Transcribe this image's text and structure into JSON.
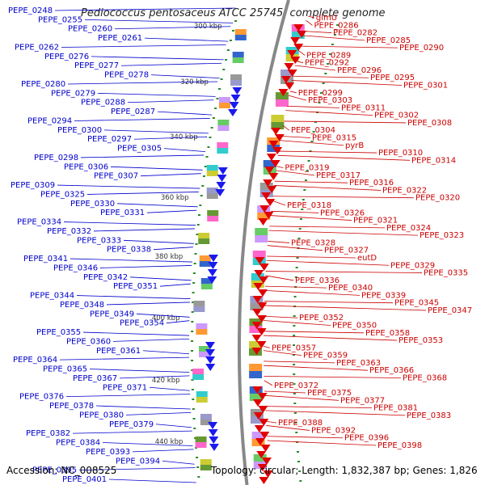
{
  "title": "Pediococcus pentosaceus ATCC 25745, complete genome",
  "footer": {
    "accession": "Accession: NC_008525",
    "topology": "Topology: circular; Length: 1,832,387 bp; Genes: 1,826"
  },
  "colors": {
    "left_labels": "#0000cc",
    "right_labels": "#cc0000",
    "backbone": "#888888",
    "ticks": "#2a8a2a"
  },
  "scale_ticks": [
    "300 kbp",
    "320 kbp",
    "340 kbp",
    "360 kbp",
    "380 kbp",
    "400 kbp",
    "420 kbp",
    "440 kbp"
  ],
  "left_labels": [
    "PEPE_0248",
    "PEPE_0255",
    "PEPE_0260",
    "PEPE_0261",
    "PEPE_0262",
    "PEPE_0276",
    "PEPE_0277",
    "PEPE_0278",
    "PEPE_0280",
    "PEPE_0279",
    "PEPE_0288",
    "PEPE_0287",
    "PEPE_0294",
    "PEPE_0300",
    "PEPE_0297",
    "PEPE_0305",
    "PEPE_0298",
    "PEPE_0306",
    "PEPE_0307",
    "PEPE_0309",
    "PEPE_0325",
    "PEPE_0330",
    "PEPE_0331",
    "PEPE_0334",
    "PEPE_0332",
    "PEPE_0333",
    "PEPE_0338",
    "PEPE_0341",
    "PEPE_0346",
    "PEPE_0342",
    "PEPE_0351",
    "PEPE_0344",
    "PEPE_0348",
    "PEPE_0349",
    "PEPE_0354",
    "PEPE_0355",
    "PEPE_0360",
    "PEPE_0361",
    "PEPE_0364",
    "PEPE_0365",
    "PEPE_0367",
    "PEPE_0371",
    "PEPE_0376",
    "PEPE_0378",
    "PEPE_0380",
    "PEPE_0379",
    "PEPE_0382",
    "PEPE_0384",
    "PEPE_0393",
    "PEPE_0394",
    "PEPE_0395",
    "PEPE_0401"
  ],
  "right_labels": [
    "glmU",
    "PEPE_0286",
    "PEPE_0282",
    "PEPE_0285",
    "PEPE_0290",
    "PEPE_0289",
    "PEPE_0292",
    "PEPE_0296",
    "PEPE_0295",
    "PEPE_0301",
    "PEPE_0299",
    "PEPE_0303",
    "PEPE_0311",
    "PEPE_0302",
    "PEPE_0308",
    "PEPE_0304",
    "PEPE_0315",
    "pyrB",
    "PEPE_0310",
    "PEPE_0314",
    "PEPE_0319",
    "PEPE_0317",
    "PEPE_0316",
    "PEPE_0322",
    "PEPE_0320",
    "PEPE_0318",
    "PEPE_0326",
    "PEPE_0321",
    "PEPE_0324",
    "PEPE_0323",
    "PEPE_0328",
    "PEPE_0327",
    "eutD",
    "PEPE_0329",
    "PEPE_0335",
    "PEPE_0336",
    "PEPE_0340",
    "PEPE_0339",
    "PEPE_0345",
    "PEPE_0347",
    "PEPE_0352",
    "PEPE_0350",
    "PEPE_0358",
    "PEPE_0353",
    "PEPE_0357",
    "PEPE_0359",
    "PEPE_0363",
    "PEPE_0366",
    "PEPE_0368",
    "PEPE_0372",
    "PEPE_0375",
    "PEPE_0377",
    "PEPE_0381",
    "PEPE_0383",
    "PEPE_0388",
    "PEPE_0392",
    "PEPE_0396",
    "PEPE_0398"
  ]
}
